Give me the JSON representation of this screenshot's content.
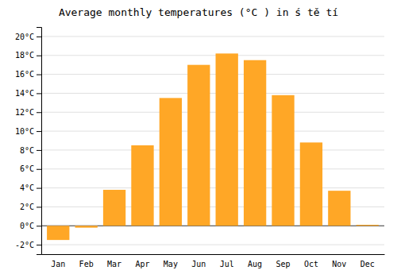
{
  "chart_data": {
    "type": "bar",
    "title": "Average monthly temperatures (°C ) in ś tě tí",
    "categories": [
      "Jan",
      "Feb",
      "Mar",
      "Apr",
      "May",
      "Jun",
      "Jul",
      "Aug",
      "Sep",
      "Oct",
      "Nov",
      "Dec"
    ],
    "values": [
      -1.5,
      -0.2,
      3.8,
      8.5,
      13.5,
      17.0,
      18.2,
      17.5,
      13.8,
      8.8,
      3.7,
      0.1
    ],
    "color": "#FFA726",
    "ylim": [
      -3,
      21
    ],
    "yticks": [
      {
        "value": -2,
        "label": "-2°C"
      },
      {
        "value": 0,
        "label": "0°C"
      },
      {
        "value": 2,
        "label": "2°C"
      },
      {
        "value": 4,
        "label": "4°C"
      },
      {
        "value": 6,
        "label": "6°C"
      },
      {
        "value": 8,
        "label": "8°C"
      },
      {
        "value": 10,
        "label": "10°C"
      },
      {
        "value": 12,
        "label": "12°C"
      },
      {
        "value": 14,
        "label": "14°C"
      },
      {
        "value": 16,
        "label": "16°C"
      },
      {
        "value": 18,
        "label": "18°C"
      },
      {
        "value": 20,
        "label": "20°C"
      }
    ],
    "grid": true
  }
}
